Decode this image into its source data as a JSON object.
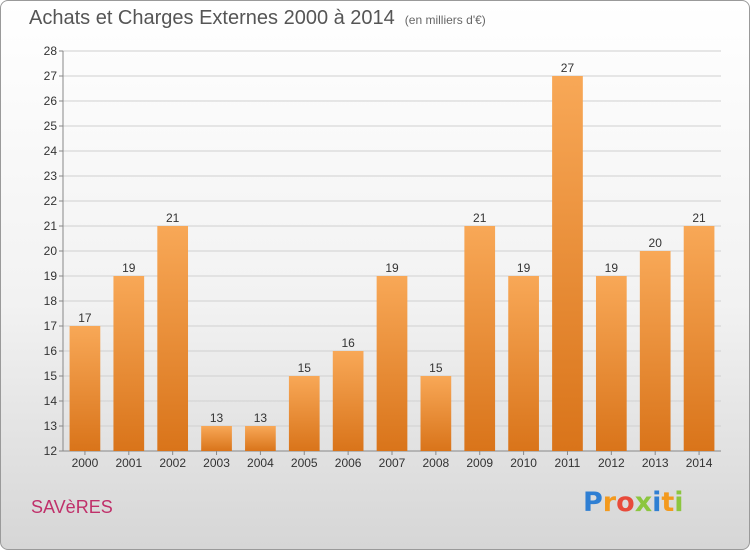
{
  "header": {
    "title": "Achats et Charges Externes 2000 à 2014",
    "unit": "(en milliers d'€)"
  },
  "commune": "SAVèRES",
  "brand": {
    "name": "Proxiti",
    "letters": [
      {
        "ch": "P",
        "color": "#2f7fd3"
      },
      {
        "ch": "r",
        "color": "#f39a1e"
      },
      {
        "ch": "o",
        "color": "#e84a3a"
      },
      {
        "ch": "x",
        "color": "#8cc63f"
      },
      {
        "ch": "i",
        "color": "#2f7fd3"
      },
      {
        "ch": "t",
        "color": "#f39a1e"
      },
      {
        "ch": "i",
        "color": "#8cc63f"
      }
    ]
  },
  "colors": {
    "bar_top": "#f8a857",
    "bar_bottom": "#d9741a",
    "grid": "#d0d0d0",
    "axis": "#888888",
    "text": "#333333"
  },
  "chart_data": {
    "type": "bar",
    "title": "Achats et Charges Externes 2000 à 2014",
    "subtitle": "(en milliers d'€)",
    "categories": [
      "2000",
      "2001",
      "2002",
      "2003",
      "2004",
      "2005",
      "2006",
      "2007",
      "2008",
      "2009",
      "2010",
      "2011",
      "2012",
      "2013",
      "2014"
    ],
    "values": [
      17,
      19,
      21,
      13,
      13,
      15,
      16,
      19,
      15,
      21,
      19,
      27,
      19,
      20,
      21
    ],
    "ylim": [
      12,
      28
    ],
    "yticks": [
      12,
      13,
      14,
      15,
      16,
      17,
      18,
      19,
      20,
      21,
      22,
      23,
      24,
      25,
      26,
      27,
      28
    ],
    "grid": true,
    "data_labels": true
  }
}
